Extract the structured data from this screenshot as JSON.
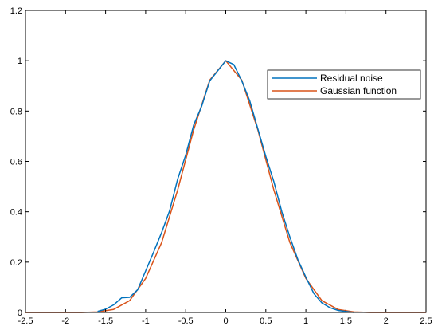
{
  "chart_data": {
    "type": "line",
    "title": "",
    "xlabel": "",
    "ylabel": "",
    "xlim": [
      -2.5,
      2.5
    ],
    "ylim": [
      0,
      1.2
    ],
    "xticks": [
      -2.5,
      -2,
      -1.5,
      -1,
      -0.5,
      0,
      0.5,
      1,
      1.5,
      2,
      2.5
    ],
    "xtick_labels": [
      "-2.5",
      "-2",
      "-1.5",
      "-1",
      "-0.5",
      "0",
      "0.5",
      "1",
      "1.5",
      "2",
      "2.5"
    ],
    "yticks": [
      0,
      0.2,
      0.4,
      0.6,
      0.8,
      1,
      1.2
    ],
    "ytick_labels": [
      "0",
      "0.2",
      "0.4",
      "0.6",
      "0.8",
      "1",
      "1.2"
    ],
    "grid": false,
    "legend_position": "upper-right",
    "series": [
      {
        "name": "Residual noise",
        "color": "#0072BD",
        "x": [
          -1.6,
          -1.5,
          -1.4,
          -1.3,
          -1.2,
          -1.1,
          -1.0,
          -0.9,
          -0.8,
          -0.7,
          -0.6,
          -0.5,
          -0.4,
          -0.3,
          -0.2,
          -0.1,
          0.0,
          0.1,
          0.2,
          0.3,
          0.4,
          0.5,
          0.6,
          0.7,
          0.8,
          0.9,
          1.0,
          1.1,
          1.2,
          1.3,
          1.4,
          1.5,
          1.6
        ],
        "y": [
          0.004,
          0.013,
          0.03,
          0.058,
          0.06,
          0.09,
          0.165,
          0.24,
          0.318,
          0.405,
          0.53,
          0.625,
          0.745,
          0.82,
          0.92,
          0.96,
          1.0,
          0.985,
          0.92,
          0.84,
          0.73,
          0.62,
          0.52,
          0.4,
          0.3,
          0.21,
          0.14,
          0.075,
          0.038,
          0.019,
          0.008,
          0.004,
          0.0
        ]
      },
      {
        "name": "Gaussian function",
        "color": "#D95319",
        "x": [
          -2.5,
          -2.0,
          -1.8,
          -1.6,
          -1.4,
          -1.2,
          -1.0,
          -0.8,
          -0.6,
          -0.4,
          -0.2,
          0.0,
          0.2,
          0.4,
          0.6,
          0.8,
          1.0,
          1.2,
          1.4,
          1.6,
          1.8,
          2.0,
          2.5
        ],
        "y": [
          0.0,
          0.0,
          0.0,
          0.002,
          0.012,
          0.047,
          0.135,
          0.278,
          0.487,
          0.726,
          0.923,
          1.0,
          0.923,
          0.726,
          0.487,
          0.278,
          0.135,
          0.047,
          0.012,
          0.002,
          0.0,
          0.0,
          0.0
        ]
      }
    ]
  }
}
